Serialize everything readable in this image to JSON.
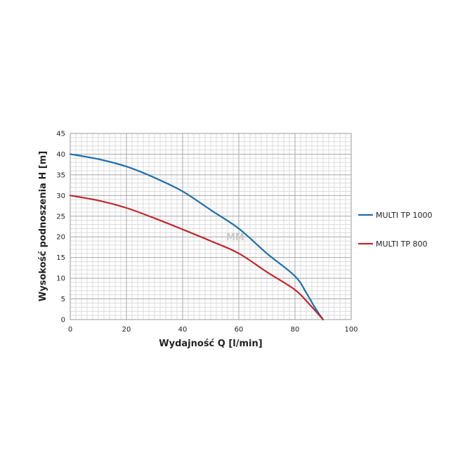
{
  "chart_data": {
    "type": "line",
    "xlabel": "Wydajność Q [l/min]",
    "ylabel": "Wysokość podnoszenia H [m]",
    "xlim": [
      0,
      100
    ],
    "ylim": [
      0,
      45
    ],
    "x_ticks": [
      0,
      20,
      40,
      60,
      80,
      100
    ],
    "y_ticks": [
      0,
      5,
      10,
      15,
      20,
      25,
      30,
      35,
      40,
      45
    ],
    "grid": true,
    "legend_position": "right",
    "watermark": "MM",
    "series": [
      {
        "name": "MULTI TP 1000",
        "color": "#1f6fab",
        "points": [
          [
            0,
            40
          ],
          [
            10,
            38.8
          ],
          [
            20,
            37
          ],
          [
            30,
            34.3
          ],
          [
            40,
            31
          ],
          [
            50,
            26.5
          ],
          [
            60,
            22
          ],
          [
            70,
            16
          ],
          [
            80,
            10.5
          ],
          [
            84,
            6.5
          ],
          [
            87,
            3
          ],
          [
            90,
            0
          ]
        ]
      },
      {
        "name": "MULTI TP 800",
        "color": "#c0272d",
        "points": [
          [
            0,
            30
          ],
          [
            10,
            28.8
          ],
          [
            20,
            27
          ],
          [
            30,
            24.5
          ],
          [
            40,
            21.8
          ],
          [
            50,
            19
          ],
          [
            60,
            16
          ],
          [
            70,
            11.5
          ],
          [
            80,
            7.2
          ],
          [
            85,
            3.8
          ],
          [
            90,
            0
          ]
        ]
      }
    ]
  }
}
